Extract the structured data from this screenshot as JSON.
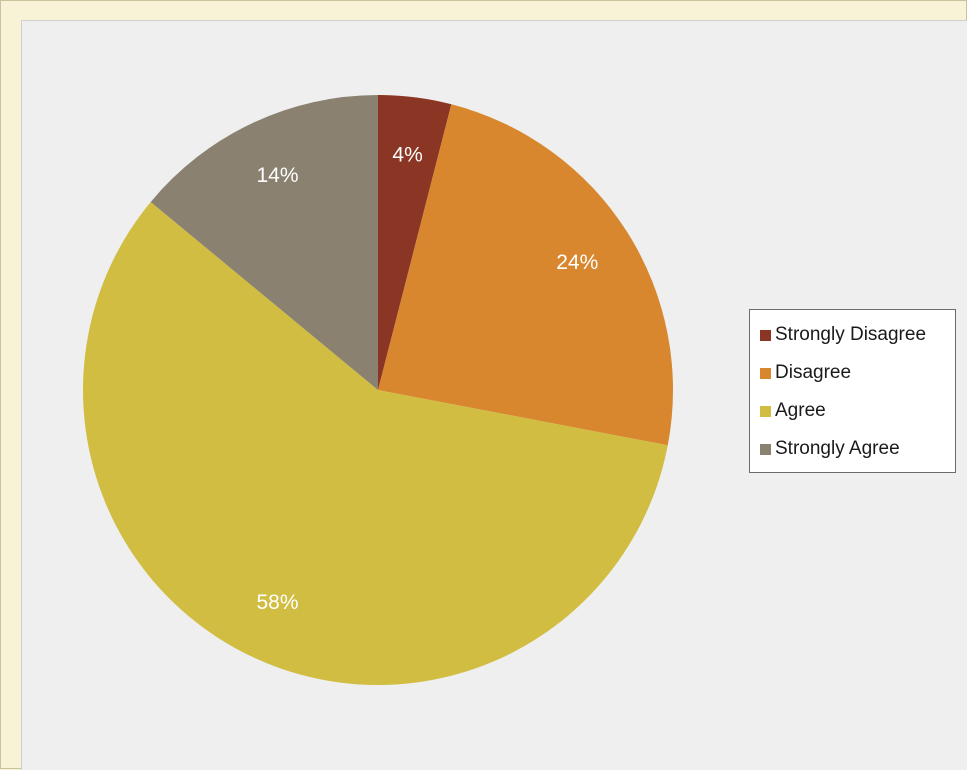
{
  "chart_data": {
    "type": "pie",
    "title": "",
    "categories": [
      "Strongly Disagree",
      "Disagree",
      "Agree",
      "Strongly Agree"
    ],
    "values": [
      4,
      24,
      58,
      14
    ],
    "labels": [
      "4%",
      "24%",
      "58%",
      "14%"
    ],
    "colors": [
      "#8b3524",
      "#d8872e",
      "#d1bd41",
      "#8b8170"
    ],
    "start_angle_deg": 0,
    "direction": "clockwise",
    "legend_position": "right"
  }
}
